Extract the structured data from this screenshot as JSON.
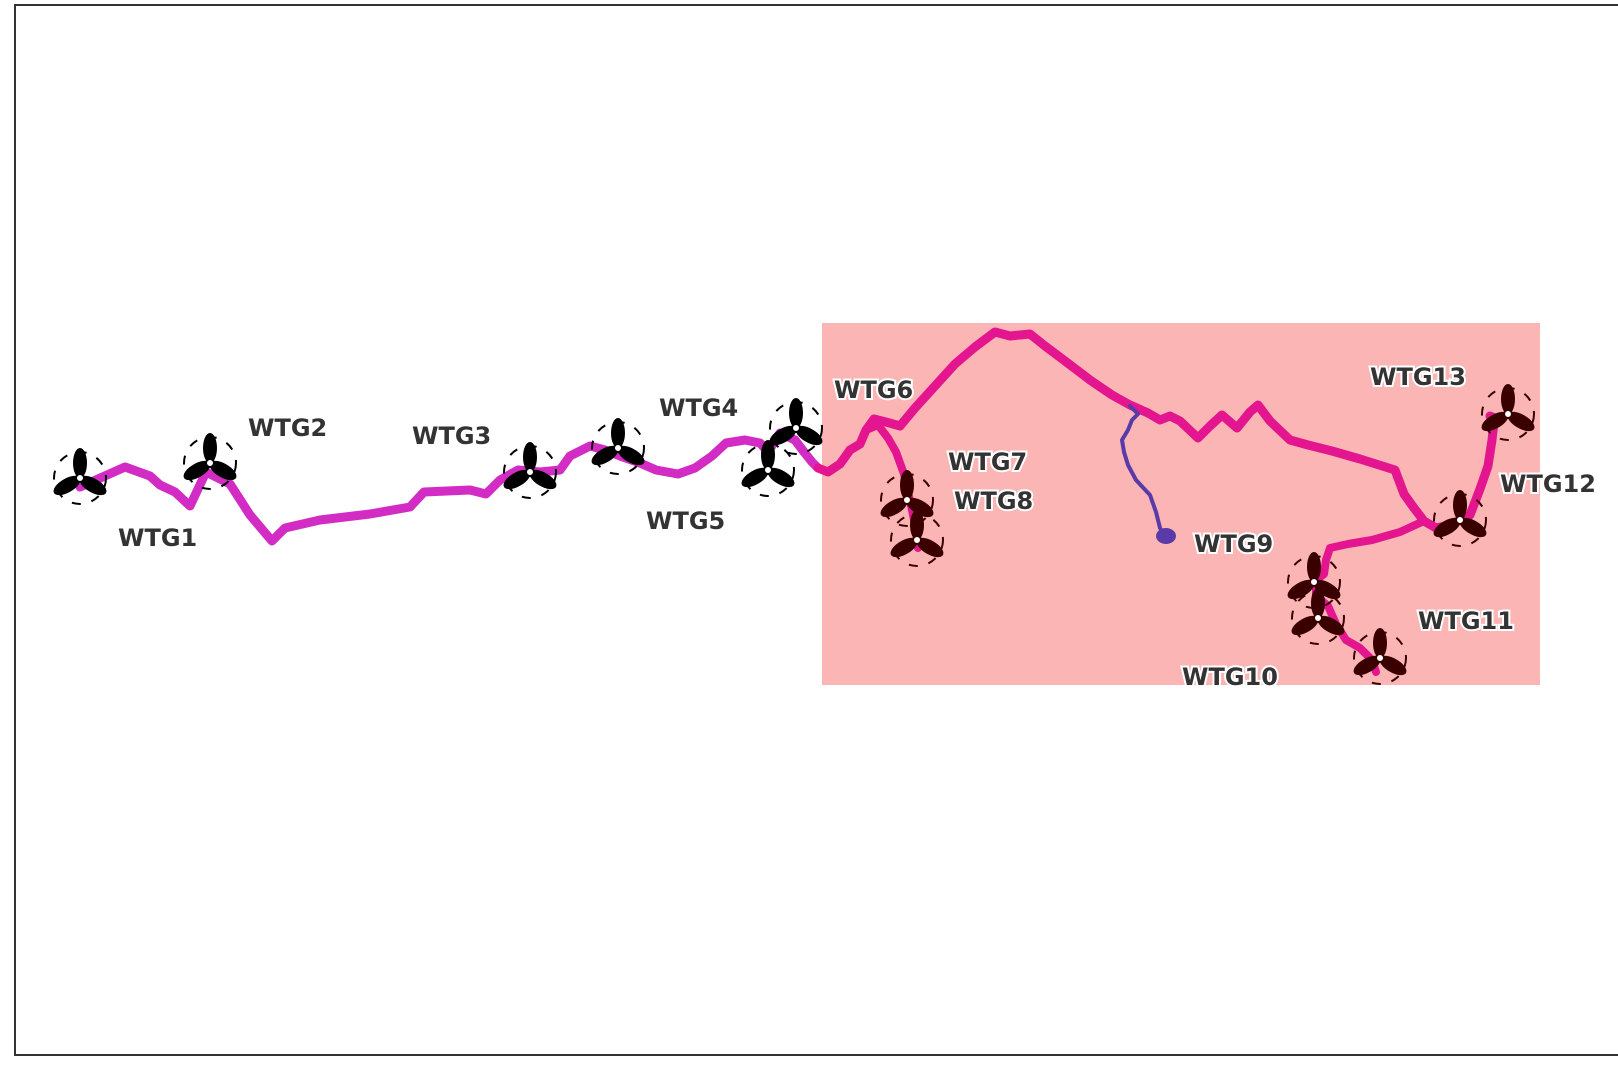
{
  "colors": {
    "zone": "#fbb5b5",
    "cable_outside": "#d22cc4",
    "cable_inside": "#e3168f",
    "branch": "#5a3aa8",
    "turbine_outside": "#000000",
    "turbine_inside": "#3a0000",
    "label": "#333333"
  },
  "turbines": [
    {
      "label": "WTG1"
    },
    {
      "label": "WTG2"
    },
    {
      "label": "WTG3"
    },
    {
      "label": "WTG4"
    },
    {
      "label": "WTG5"
    },
    {
      "label": "WTG6"
    },
    {
      "label": "WTG7"
    },
    {
      "label": "WTG8"
    },
    {
      "label": "WTG9"
    },
    {
      "label": "WTG10"
    },
    {
      "label": "WTG11"
    },
    {
      "label": "WTG12"
    },
    {
      "label": "WTG13"
    }
  ]
}
